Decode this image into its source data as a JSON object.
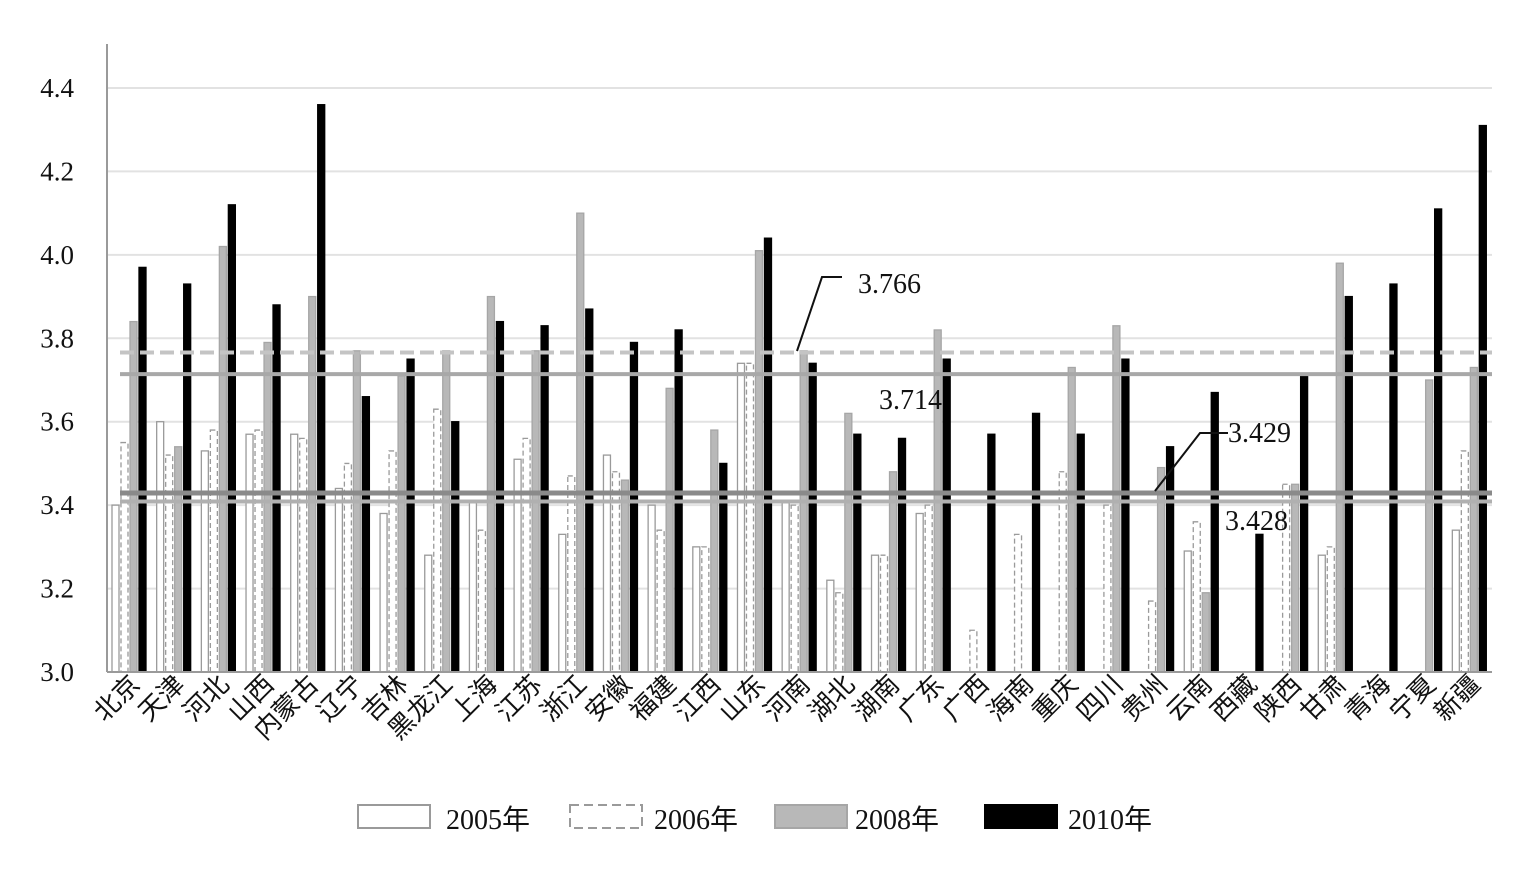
{
  "chart_data": {
    "type": "bar",
    "categories": [
      "北京",
      "天津",
      "河北",
      "山西",
      "内蒙古",
      "辽宁",
      "吉林",
      "黑龙江",
      "上海",
      "江苏",
      "浙江",
      "安徽",
      "福建",
      "江西",
      "山东",
      "河南",
      "湖北",
      "湖南",
      "广东",
      "广西",
      "海南",
      "重庆",
      "四川",
      "贵州",
      "云南",
      "西藏",
      "陕西",
      "甘肃",
      "青海",
      "宁夏",
      "新疆"
    ],
    "series": [
      {
        "name": "2005年",
        "color": "#ffffff",
        "stroke": "#9a9a9a",
        "dash": false,
        "values": [
          3.4,
          3.6,
          3.53,
          3.57,
          3.57,
          3.44,
          3.38,
          3.28,
          3.41,
          3.51,
          3.33,
          3.52,
          3.4,
          3.3,
          3.74,
          3.41,
          3.22,
          3.28,
          3.38,
          3.0,
          3.0,
          3.0,
          3.0,
          3.0,
          3.29,
          3.0,
          3.0,
          3.28,
          3.0,
          3.0,
          3.34
        ]
      },
      {
        "name": "2006年",
        "color": "#ffffff",
        "stroke": "#9a9a9a",
        "dash": true,
        "values": [
          3.55,
          3.52,
          3.58,
          3.58,
          3.56,
          3.5,
          3.53,
          3.63,
          3.34,
          3.56,
          3.47,
          3.48,
          3.34,
          3.3,
          3.74,
          3.4,
          3.19,
          3.28,
          3.4,
          3.1,
          3.33,
          3.48,
          3.4,
          3.17,
          3.36,
          3.0,
          3.45,
          3.3,
          3.0,
          3.0,
          3.53
        ]
      },
      {
        "name": "2008年",
        "color": "#b8b8b8",
        "stroke": "#a6a6a6",
        "dash": false,
        "values": [
          3.84,
          3.54,
          4.02,
          3.79,
          3.9,
          3.77,
          3.71,
          3.77,
          3.9,
          3.77,
          4.1,
          3.46,
          3.68,
          3.58,
          4.01,
          3.77,
          3.62,
          3.48,
          3.82,
          3.0,
          3.0,
          3.73,
          3.83,
          3.49,
          3.19,
          3.0,
          3.45,
          3.98,
          3.0,
          3.7,
          3.73
        ]
      },
      {
        "name": "2010年",
        "color": "#000000",
        "stroke": "#000000",
        "dash": false,
        "values": [
          3.97,
          3.93,
          4.12,
          3.88,
          4.36,
          3.66,
          3.75,
          3.6,
          3.84,
          3.83,
          3.87,
          3.79,
          3.82,
          3.5,
          4.04,
          3.74,
          3.57,
          3.56,
          3.75,
          3.57,
          3.62,
          3.57,
          3.75,
          3.54,
          3.67,
          3.33,
          3.71,
          3.9,
          3.93,
          4.11,
          4.31
        ]
      }
    ],
    "ylim": [
      3.0,
      4.45
    ],
    "yticks": [
      "3.0",
      "3.2",
      "3.4",
      "3.6",
      "3.8",
      "4.0",
      "4.2",
      "4.4"
    ],
    "ytick_values": [
      3.0,
      3.2,
      3.4,
      3.6,
      3.8,
      4.0,
      4.2,
      4.4
    ],
    "xlabel": "",
    "ylabel": "",
    "title": "",
    "grid": true,
    "legend_position": "bottom",
    "reference_lines": [
      {
        "label": "3.766",
        "value": 3.766,
        "style": "dashed",
        "color": "#c4c4c4"
      },
      {
        "label": "3.714",
        "value": 3.714,
        "style": "solid",
        "color": "#a8a8a8"
      },
      {
        "label": "3.429",
        "value": 3.429,
        "style": "solid",
        "color": "#8a8a8a"
      },
      {
        "label": "3.428",
        "value": 3.428,
        "style": "solid",
        "color": "#b0b0b0"
      }
    ]
  }
}
